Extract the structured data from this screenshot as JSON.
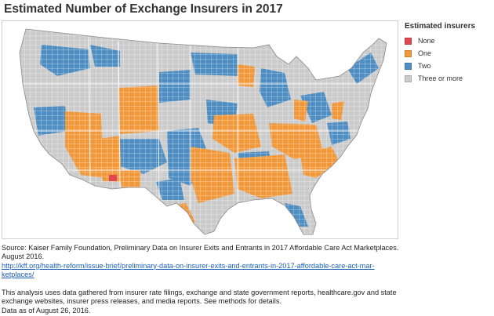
{
  "title": "Estimated Number of Exchange Insurers in 2017",
  "legend": {
    "title": "Estimated insurers",
    "items": [
      {
        "label": "None",
        "color": "#e0474f"
      },
      {
        "label": "One",
        "color": "#f0983a"
      },
      {
        "label": "Two",
        "color": "#4f8ec2"
      },
      {
        "label": "Three or more",
        "color": "#cbcbcb"
      }
    ]
  },
  "source": {
    "citation": "Source: Kaiser Family Foundation, Preliminary Data on Insurer Exits and Entrants in 2017 Affordable Care Act Marketplaces. August 2016.",
    "link_line1": "http://kff.org/health-reform/issue-brief/preliminary-data-on-insurer-exits-and-entrants-in-2017-affordable-care-act-mar-",
    "link_line2": "ketplaces/",
    "note": "This analysis uses data gathered from insurer rate filings, exchange and state government reports, healthcare.gov and state exchange websites, insurer press releases, and media reports. See methods for details.",
    "data_as_of": "Data as of August 26, 2016."
  }
}
